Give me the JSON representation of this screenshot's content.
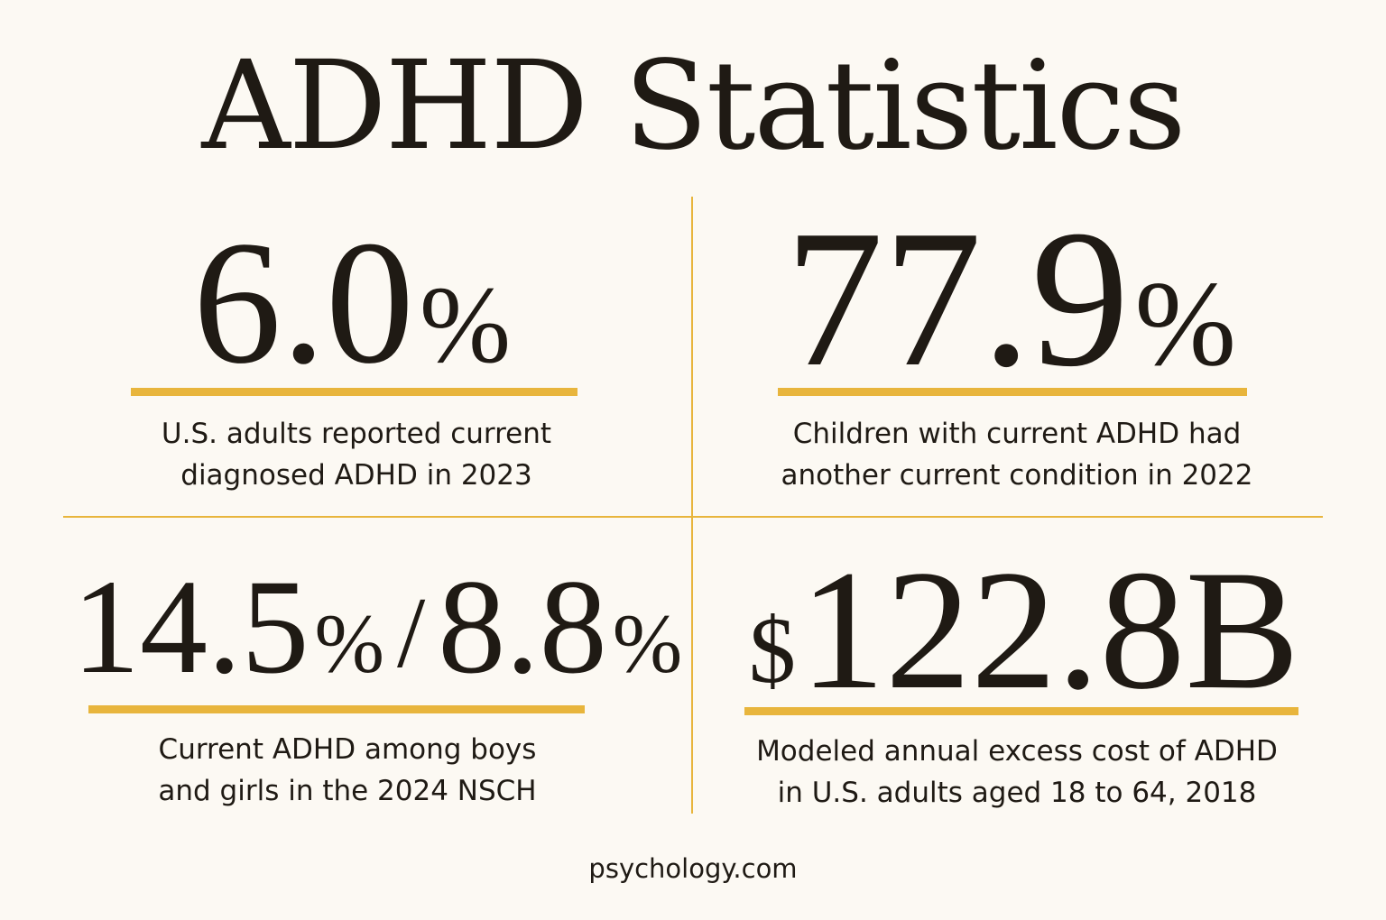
{
  "title": "ADHD Statistics",
  "accent_color": "#e8b53c",
  "background_color": "#fcf9f3",
  "stats": [
    {
      "number": "6.0",
      "unit": "%",
      "line1": "U.S. adults reported current",
      "line2": "diagnosed ADHD in 2023"
    },
    {
      "number": "77.9",
      "unit": "%",
      "line1": "Children with current ADHD had",
      "line2": "another current condition in 2022"
    },
    {
      "number_a": "14.5",
      "unit_a": "%",
      "separator": "/",
      "number_b": "8.8",
      "unit_b": "%",
      "line1": "Current ADHD among boys",
      "line2": "and girls in the 2024 NSCH"
    },
    {
      "currency": "$",
      "number": "122.8B",
      "line1": "Modeled annual excess cost of ADHD",
      "line2": "in U.S. adults aged 18 to 64, 2018"
    }
  ],
  "footer": "psychology.com"
}
